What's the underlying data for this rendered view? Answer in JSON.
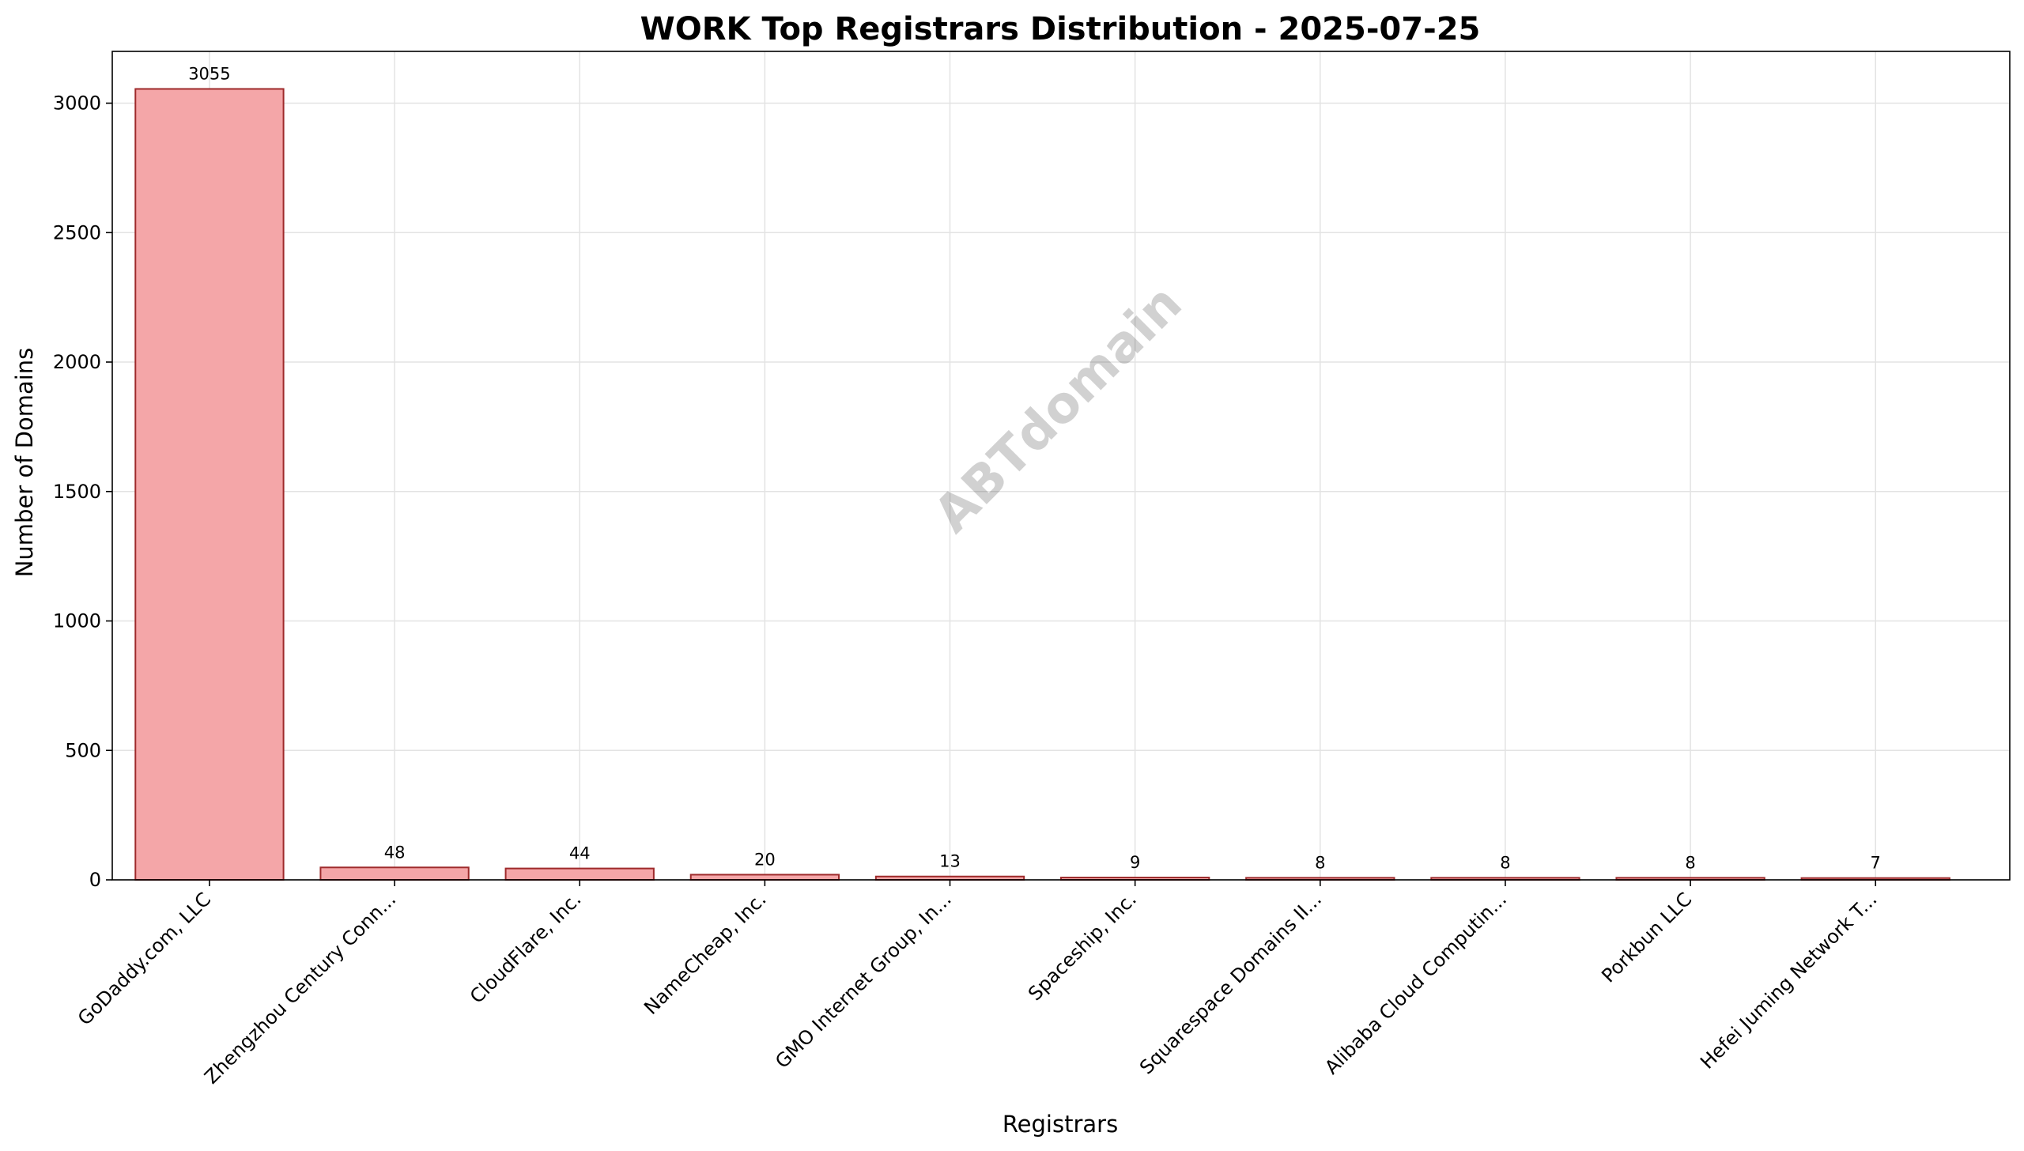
{
  "chart_data": {
    "type": "bar",
    "title": "WORK Top Registrars Distribution - 2025-07-25",
    "xlabel": "Registrars",
    "ylabel": "Number of Domains",
    "categories": [
      "GoDaddy.com, LLC",
      "Zhengzhou Century Conn...",
      "CloudFlare, Inc.",
      "NameCheap, Inc.",
      "GMO Internet Group, In...",
      "Spaceship, Inc.",
      "Squarespace Domains II...",
      "Alibaba Cloud Computin...",
      "Porkbun LLC",
      "Hefei Juming Network T..."
    ],
    "values": [
      3055,
      48,
      44,
      20,
      13,
      9,
      8,
      8,
      8,
      7
    ],
    "value_labels": [
      "3055",
      "48",
      "44",
      "20",
      "13",
      "9",
      "8",
      "8",
      "8",
      "7"
    ],
    "ylim": [
      0,
      3200
    ],
    "yticks": [
      0,
      500,
      1000,
      1500,
      2000,
      2500,
      3000
    ],
    "ytick_labels": [
      "0",
      "500",
      "1000",
      "1500",
      "2000",
      "2500",
      "3000"
    ],
    "grid": true,
    "legend": "none",
    "bar_color": "#f4a6a8",
    "bar_edge_color": "#9e2a2b",
    "watermark": "ABTdomain"
  }
}
